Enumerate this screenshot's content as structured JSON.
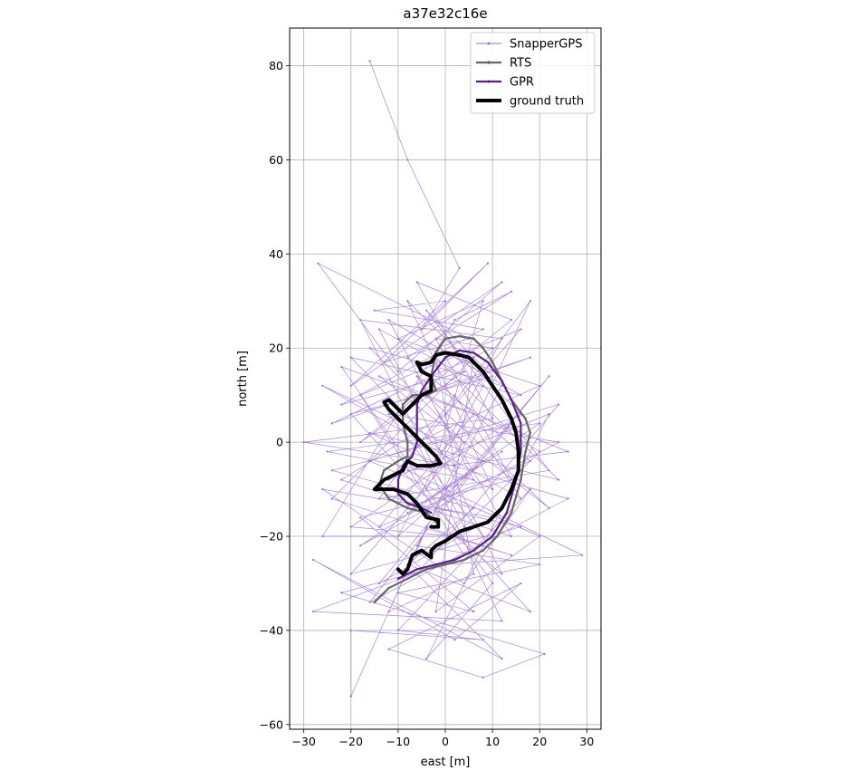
{
  "chart_data": {
    "type": "line",
    "title": "a37e32c16e",
    "xlabel": "east [m]",
    "ylabel": "north [m]",
    "xlim": [
      -33,
      33
    ],
    "ylim": [
      -61,
      88
    ],
    "xticks": [
      -30,
      -20,
      -10,
      0,
      10,
      20,
      30
    ],
    "yticks": [
      -60,
      -40,
      -20,
      0,
      20,
      40,
      60,
      80
    ],
    "grid": true,
    "legend_position": "top-right",
    "colors": {
      "snapper": "#9b6fd0",
      "rts": "#666666",
      "gpr": "#5a1f8f",
      "truth": "#000000"
    },
    "series": [
      {
        "name": "SnapperGPS",
        "points": [
          [
            -16,
            81
          ],
          [
            -8,
            60
          ],
          [
            3,
            37
          ],
          [
            -5,
            24
          ],
          [
            9,
            38
          ],
          [
            -13,
            17
          ],
          [
            5,
            22
          ],
          [
            -27,
            38
          ],
          [
            -10,
            15
          ],
          [
            12,
            34
          ],
          [
            -20,
            12
          ],
          [
            0,
            30
          ],
          [
            -15,
            28
          ],
          [
            8,
            24
          ],
          [
            -22,
            8
          ],
          [
            4,
            15
          ],
          [
            -18,
            0
          ],
          [
            14,
            26
          ],
          [
            -6,
            34
          ],
          [
            10,
            5
          ],
          [
            -30,
            0
          ],
          [
            2,
            -5
          ],
          [
            -20,
            18
          ],
          [
            16,
            10
          ],
          [
            -12,
            26
          ],
          [
            6,
            -8
          ],
          [
            -25,
            -2
          ],
          [
            20,
            4
          ],
          [
            -8,
            -15
          ],
          [
            12,
            -2
          ],
          [
            -18,
            -22
          ],
          [
            0,
            -12
          ],
          [
            22,
            14
          ],
          [
            -14,
            -30
          ],
          [
            10,
            -16
          ],
          [
            -26,
            -10
          ],
          [
            4,
            -30
          ],
          [
            18,
            -10
          ],
          [
            -10,
            -40
          ],
          [
            8,
            -42
          ],
          [
            -20,
            -40
          ],
          [
            -20,
            -54
          ],
          [
            -4,
            -18
          ],
          [
            14,
            -24
          ],
          [
            -24,
            -12
          ],
          [
            6,
            18
          ],
          [
            -2,
            -36
          ],
          [
            20,
            -20
          ],
          [
            -16,
            -4
          ],
          [
            24,
            8
          ],
          [
            -6,
            -28
          ],
          [
            12,
            -46
          ],
          [
            -28,
            -25
          ],
          [
            2,
            -42
          ],
          [
            16,
            -30
          ],
          [
            -12,
            -44
          ],
          [
            8,
            -50
          ],
          [
            21,
            -45
          ],
          [
            -22,
            -32
          ],
          [
            0,
            -26
          ],
          [
            29,
            -24
          ],
          [
            -8,
            -6
          ],
          [
            26,
            -2
          ],
          [
            -14,
            14
          ],
          [
            22,
            -14
          ],
          [
            -4,
            10
          ],
          [
            18,
            18
          ],
          [
            -24,
            4
          ],
          [
            10,
            20
          ],
          [
            -2,
            22
          ],
          [
            14,
            -8
          ],
          [
            -18,
            -16
          ],
          [
            6,
            -36
          ],
          [
            -10,
            -32
          ],
          [
            20,
            -26
          ],
          [
            -6,
            -22
          ],
          [
            12,
            12
          ],
          [
            -16,
            20
          ],
          [
            4,
            0
          ],
          [
            -20,
            -28
          ],
          [
            16,
            -18
          ],
          [
            -2,
            -14
          ],
          [
            24,
            0
          ],
          [
            -12,
            6
          ],
          [
            8,
            -20
          ],
          [
            -26,
            -20
          ],
          [
            2,
            26
          ],
          [
            14,
            32
          ],
          [
            -8,
            18
          ],
          [
            18,
            -4
          ],
          [
            -14,
            -18
          ],
          [
            6,
            6
          ],
          [
            -22,
            16
          ],
          [
            10,
            -30
          ],
          [
            -4,
            -46
          ],
          [
            22,
            6
          ],
          [
            -12,
            -8
          ],
          [
            16,
            24
          ],
          [
            -18,
            10
          ],
          [
            4,
            -24
          ],
          [
            -28,
            -36
          ],
          [
            12,
            -38
          ],
          [
            -6,
            0
          ],
          [
            20,
            12
          ],
          [
            -10,
            22
          ],
          [
            8,
            30
          ],
          [
            -2,
            -4
          ],
          [
            26,
            -12
          ],
          [
            -16,
            -34
          ],
          [
            14,
            4
          ],
          [
            -24,
            -6
          ],
          [
            6,
            -14
          ],
          [
            -8,
            -26
          ],
          [
            18,
            -36
          ],
          [
            -20,
            6
          ],
          [
            10,
            14
          ],
          [
            -4,
            28
          ],
          [
            22,
            -6
          ],
          [
            -14,
            -12
          ],
          [
            2,
            10
          ],
          [
            16,
            -12
          ],
          [
            -26,
            12
          ],
          [
            8,
            -4
          ],
          [
            -10,
            -20
          ],
          [
            12,
            22
          ],
          [
            -18,
            26
          ],
          [
            4,
            -18
          ],
          [
            20,
            -2
          ],
          [
            -6,
            14
          ],
          [
            14,
            -20
          ],
          [
            -22,
            -8
          ],
          [
            0,
            6
          ],
          [
            18,
            30
          ],
          [
            -12,
            -36
          ],
          [
            6,
            -28
          ],
          [
            -2,
            18
          ],
          [
            24,
            -8
          ],
          [
            -16,
            2
          ],
          [
            10,
            -10
          ],
          [
            -8,
            30
          ],
          [
            16,
            6
          ],
          [
            -20,
            -18
          ],
          [
            2,
            -20
          ],
          [
            12,
            -28
          ],
          [
            -14,
            24
          ],
          [
            8,
            12
          ],
          [
            -4,
            -10
          ]
        ]
      },
      {
        "name": "RTS",
        "points": [
          [
            -15,
            -34
          ],
          [
            -12,
            -31
          ],
          [
            -8,
            -29
          ],
          [
            -4,
            -27
          ],
          [
            0,
            -26
          ],
          [
            4,
            -25
          ],
          [
            8,
            -23
          ],
          [
            11,
            -20
          ],
          [
            14,
            -15
          ],
          [
            16,
            -8
          ],
          [
            17,
            -2
          ],
          [
            18,
            2
          ],
          [
            17,
            5
          ],
          [
            14,
            9
          ],
          [
            12,
            13
          ],
          [
            10,
            17
          ],
          [
            8,
            20
          ],
          [
            6,
            22
          ],
          [
            3,
            22.5
          ],
          [
            0,
            22
          ],
          [
            -2,
            19
          ],
          [
            -3,
            14
          ],
          [
            -2,
            11
          ],
          [
            -4,
            10
          ],
          [
            -7,
            10
          ],
          [
            -9,
            8
          ],
          [
            -9,
            4
          ],
          [
            -8,
            0
          ],
          [
            -8,
            -3
          ],
          [
            -10,
            -4
          ],
          [
            -13,
            -6
          ],
          [
            -14,
            -9
          ],
          [
            -12,
            -12
          ],
          [
            -8,
            -14
          ],
          [
            -4,
            -15
          ],
          [
            -2,
            -17
          ]
        ]
      },
      {
        "name": "GPR",
        "points": [
          [
            -10,
            -29
          ],
          [
            -6,
            -27
          ],
          [
            -2,
            -26
          ],
          [
            2,
            -25
          ],
          [
            6,
            -23
          ],
          [
            10,
            -20
          ],
          [
            13,
            -15
          ],
          [
            15,
            -8
          ],
          [
            16,
            -2
          ],
          [
            16,
            4
          ],
          [
            14,
            9
          ],
          [
            12,
            13
          ],
          [
            9,
            17
          ],
          [
            6,
            19
          ],
          [
            3,
            19.5
          ],
          [
            0,
            18
          ],
          [
            -3,
            14
          ],
          [
            -5,
            11
          ],
          [
            -6,
            8
          ],
          [
            -6,
            4
          ],
          [
            -6,
            0
          ],
          [
            -7,
            -3
          ],
          [
            -9,
            -5
          ],
          [
            -10,
            -8
          ],
          [
            -10,
            -11
          ],
          [
            -8,
            -13
          ],
          [
            -5,
            -14
          ],
          [
            -3,
            -15
          ]
        ]
      },
      {
        "name": "ground truth",
        "points": [
          [
            -10,
            -27
          ],
          [
            -9,
            -28
          ],
          [
            -8,
            -27
          ],
          [
            -7,
            -24
          ],
          [
            -5,
            -23
          ],
          [
            -3,
            -24.5
          ],
          [
            -3,
            -23
          ],
          [
            -2,
            -22
          ],
          [
            0,
            -21
          ],
          [
            3,
            -19
          ],
          [
            6,
            -18
          ],
          [
            9,
            -17
          ],
          [
            12,
            -14
          ],
          [
            14,
            -10
          ],
          [
            15.5,
            -6
          ],
          [
            15.5,
            -2
          ],
          [
            15,
            2
          ],
          [
            14,
            5
          ],
          [
            12,
            9
          ],
          [
            10,
            12
          ],
          [
            8,
            15
          ],
          [
            6,
            17
          ],
          [
            5,
            18
          ],
          [
            3,
            18.5
          ],
          [
            0,
            19
          ],
          [
            -2,
            18.5
          ],
          [
            -3,
            17
          ],
          [
            -5,
            16.5
          ],
          [
            -6,
            17
          ],
          [
            -5,
            15
          ],
          [
            -3,
            14
          ],
          [
            -3,
            11
          ],
          [
            -5,
            10
          ],
          [
            -7,
            8
          ],
          [
            -9,
            6
          ],
          [
            -10,
            7
          ],
          [
            -11,
            8
          ],
          [
            -12,
            9
          ],
          [
            -13,
            8.5
          ],
          [
            -12,
            7
          ],
          [
            -10,
            5
          ],
          [
            -8,
            3
          ],
          [
            -6,
            1
          ],
          [
            -4,
            -1
          ],
          [
            -2,
            -3
          ],
          [
            -1,
            -4.5
          ],
          [
            -3,
            -5
          ],
          [
            -6,
            -5
          ],
          [
            -8,
            -4
          ],
          [
            -9,
            -6
          ],
          [
            -11,
            -7
          ],
          [
            -13,
            -8
          ],
          [
            -15,
            -10
          ],
          [
            -14,
            -10
          ],
          [
            -11,
            -10
          ],
          [
            -8,
            -11
          ],
          [
            -6,
            -13
          ],
          [
            -4,
            -16
          ],
          [
            -1.5,
            -16.5
          ],
          [
            -1.5,
            -18
          ],
          [
            -3,
            -18
          ]
        ]
      }
    ]
  }
}
